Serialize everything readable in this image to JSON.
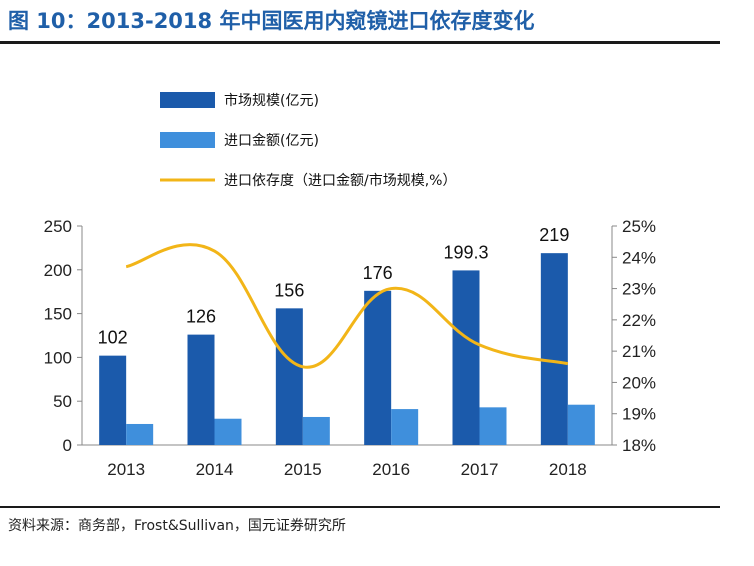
{
  "figure": {
    "title": "图 10：2013-2018 年中国医用内窥镜进口依存度变化",
    "source": "资料来源：商务部，Frost&Sullivan，国元证券研究所"
  },
  "chart_data": {
    "type": "bar",
    "categories": [
      "2013",
      "2014",
      "2015",
      "2016",
      "2017",
      "2018"
    ],
    "series": [
      {
        "name": "市场规模(亿元)",
        "type": "bar",
        "axis": "left",
        "color": "#1b5aab",
        "values": [
          102,
          126,
          156,
          176,
          199.3,
          219
        ],
        "data_labels": [
          "102",
          "126",
          "156",
          "176",
          "199.3",
          "219"
        ]
      },
      {
        "name": "进口金额(亿元)",
        "type": "bar",
        "axis": "left",
        "color": "#3f8fdc",
        "values": [
          24,
          30,
          32,
          41,
          43,
          46
        ]
      },
      {
        "name": "进口依存度（进口金额/市场规模,%）",
        "type": "line",
        "axis": "right",
        "color": "#f2b518",
        "values": [
          23.7,
          24.2,
          20.5,
          23.0,
          21.2,
          20.6
        ]
      }
    ],
    "y_left": {
      "lim": [
        0,
        250
      ],
      "ticks": [
        "0",
        "50",
        "100",
        "150",
        "200",
        "250"
      ]
    },
    "y_right": {
      "lim": [
        18,
        25
      ],
      "ticks": [
        "18%",
        "19%",
        "20%",
        "21%",
        "22%",
        "23%",
        "24%",
        "25%"
      ]
    },
    "legend_position": "top",
    "grid": false
  }
}
